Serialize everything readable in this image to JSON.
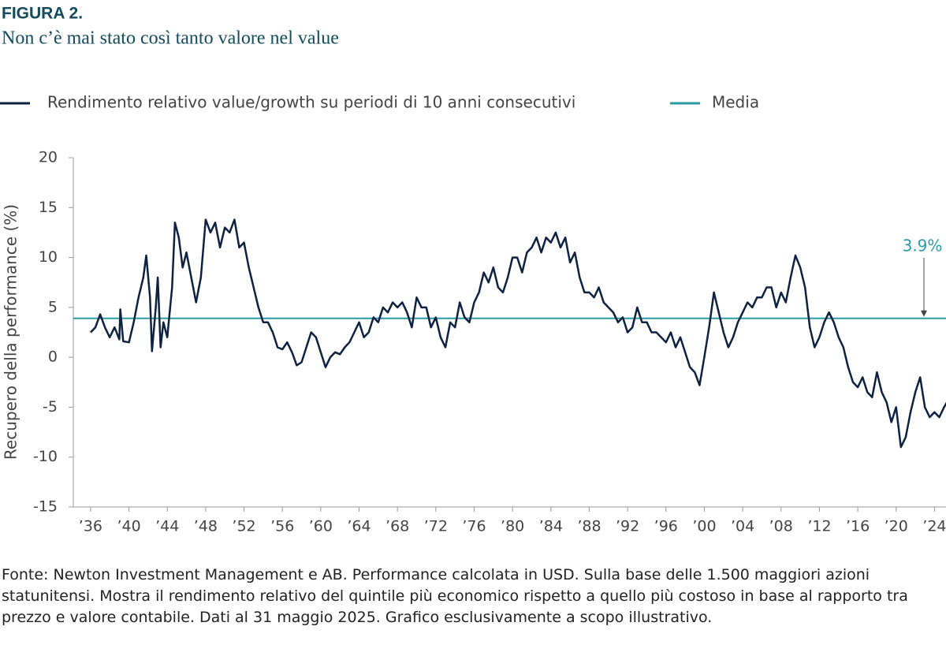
{
  "chart_data": {
    "type": "line",
    "title": "FIGURA 2.",
    "subtitle": "Non c’è mai stato così tanto valore nel value",
    "ylabel": "Recupero della performance (%)",
    "footnote": "Fonte: Newton Investment Management e AB. Performance calcolata in USD. Sulla base delle 1.500 maggiori azioni statunitensi. Mostra il rendimento relativo del quintile più economico rispetto a quello più costoso in base al rapporto tra prezzo e valore contabile. Dati al 31 maggio 2025. Grafico esclusivamente a scopo illustrativo.",
    "xlim": [
      1934.2,
      2025.2
    ],
    "ylim": [
      -15,
      20
    ],
    "yticks": [
      -15,
      -10,
      -5,
      0,
      5,
      10,
      15,
      20
    ],
    "xticks": [
      {
        "value": 1936,
        "label": "’36"
      },
      {
        "value": 1940,
        "label": "’40"
      },
      {
        "value": 1944,
        "label": "’44"
      },
      {
        "value": 1948,
        "label": "’48"
      },
      {
        "value": 1952,
        "label": "’52"
      },
      {
        "value": 1956,
        "label": "’56"
      },
      {
        "value": 1960,
        "label": "’60"
      },
      {
        "value": 1964,
        "label": "’64"
      },
      {
        "value": 1968,
        "label": "’68"
      },
      {
        "value": 1972,
        "label": "’72"
      },
      {
        "value": 1976,
        "label": "’76"
      },
      {
        "value": 1980,
        "label": "’80"
      },
      {
        "value": 1984,
        "label": "’84"
      },
      {
        "value": 1988,
        "label": "’88"
      },
      {
        "value": 1992,
        "label": "’92"
      },
      {
        "value": 1996,
        "label": "’96"
      },
      {
        "value": 2000,
        "label": "’00"
      },
      {
        "value": 2004,
        "label": "’04"
      },
      {
        "value": 2008,
        "label": "’08"
      },
      {
        "value": 2012,
        "label": "’12"
      },
      {
        "value": 2016,
        "label": "’16"
      },
      {
        "value": 2020,
        "label": "’20"
      },
      {
        "value": 2024,
        "label": "’24"
      }
    ],
    "x": [
      1936.0,
      1936.5,
      1937.0,
      1937.5,
      1938.0,
      1938.5,
      1939.0,
      1939.1,
      1939.4,
      1940.0,
      1940.5,
      1941.0,
      1941.5,
      1941.8,
      1942.2,
      1942.4,
      1942.8,
      1943.0,
      1943.3,
      1943.6,
      1944.0,
      1944.5,
      1944.8,
      1945.2,
      1945.6,
      1946.0,
      1946.5,
      1947.0,
      1947.5,
      1948.0,
      1948.5,
      1949.0,
      1949.5,
      1950.0,
      1950.5,
      1951.0,
      1951.5,
      1952.0,
      1952.5,
      1953.0,
      1953.5,
      1954.0,
      1954.5,
      1955.0,
      1955.5,
      1956.0,
      1956.5,
      1957.0,
      1957.5,
      1958.0,
      1958.5,
      1959.0,
      1959.5,
      1960.0,
      1960.5,
      1961.0,
      1961.5,
      1962.0,
      1962.5,
      1963.0,
      1963.5,
      1964.0,
      1964.5,
      1965.0,
      1965.5,
      1966.0,
      1966.5,
      1967.0,
      1967.5,
      1968.0,
      1968.5,
      1969.0,
      1969.5,
      1970.0,
      1970.5,
      1971.0,
      1971.5,
      1972.0,
      1972.5,
      1973.0,
      1973.5,
      1974.0,
      1974.5,
      1975.0,
      1975.5,
      1976.0,
      1976.5,
      1977.0,
      1977.5,
      1978.0,
      1978.5,
      1979.0,
      1979.5,
      1980.0,
      1980.5,
      1981.0,
      1981.5,
      1982.0,
      1982.5,
      1983.0,
      1983.5,
      1984.0,
      1984.5,
      1985.0,
      1985.5,
      1986.0,
      1986.5,
      1987.0,
      1987.5,
      1988.0,
      1988.5,
      1989.0,
      1989.5,
      1990.0,
      1990.5,
      1991.0,
      1991.5,
      1992.0,
      1992.5,
      1993.0,
      1993.5,
      1994.0,
      1994.5,
      1995.0,
      1995.5,
      1996.0,
      1996.5,
      1997.0,
      1997.5,
      1998.0,
      1998.5,
      1999.0,
      1999.5,
      2000.0,
      2000.5,
      2001.0,
      2001.5,
      2002.0,
      2002.5,
      2003.0,
      2003.5,
      2004.0,
      2004.5,
      2005.0,
      2005.5,
      2006.0,
      2006.5,
      2007.0,
      2007.5,
      2008.0,
      2008.5,
      2009.0,
      2009.5,
      2010.0,
      2010.5,
      2011.0,
      2011.5,
      2012.0,
      2012.5,
      2013.0,
      2013.5,
      2014.0,
      2014.5,
      2015.0,
      2015.5,
      2016.0,
      2016.5,
      2017.0,
      2017.5,
      2018.0,
      2018.5,
      2019.0,
      2019.5,
      2020.0,
      2020.5,
      2021.0,
      2021.5,
      2022.0,
      2022.5,
      2023.0,
      2023.5,
      2024.0,
      2024.5,
      2025.0,
      2025.3
    ],
    "series": [
      {
        "name": "Rendimento relativo value/growth su periodi di 10 anni consecutivi",
        "color": "#0d2240",
        "values": [
          2.5,
          3.0,
          4.3,
          3.0,
          2.0,
          3.0,
          1.8,
          4.8,
          1.6,
          1.5,
          3.5,
          6.0,
          8.0,
          10.2,
          6.0,
          0.6,
          5.0,
          8.0,
          1.0,
          3.5,
          2.0,
          7.0,
          13.5,
          12.0,
          9.0,
          10.5,
          8.0,
          5.5,
          8.0,
          13.8,
          12.5,
          13.5,
          11,
          13,
          12.5,
          13.8,
          11,
          11.5,
          9,
          7,
          5,
          3.5,
          3.5,
          2.5,
          1,
          0.8,
          1.5,
          0.5,
          -0.8,
          -0.5,
          1,
          2.5,
          2,
          0.5,
          -1,
          0,
          0.5,
          0.3,
          1,
          1.5,
          2.5,
          3.5,
          2,
          2.5,
          4,
          3.5,
          5,
          4.5,
          5.5,
          5,
          5.5,
          4.5,
          3,
          6,
          5,
          5,
          3,
          4,
          2,
          1,
          3.5,
          3,
          5.5,
          4,
          3.5,
          5.5,
          6.5,
          8.5,
          7.5,
          9,
          7,
          6.5,
          8,
          10,
          10,
          8.5,
          10.5,
          11,
          12,
          10.5,
          12,
          11.5,
          12.5,
          11,
          12,
          9.5,
          10.5,
          8,
          6.5,
          6.5,
          6,
          7,
          5.5,
          5,
          4.5,
          3.5,
          4,
          2.5,
          3,
          5,
          3.5,
          3.5,
          2.5,
          2.5,
          2,
          1.5,
          2.5,
          1,
          2,
          0.5,
          -1,
          -1.5,
          -2.8,
          0,
          3,
          6.5,
          4.5,
          2.5,
          1,
          2,
          3.5,
          4.5,
          5.5,
          5,
          6,
          6,
          7,
          7,
          5,
          6.5,
          5.5,
          8,
          10.2,
          9,
          7,
          3,
          1,
          2,
          3.5,
          4.5,
          3.5,
          2,
          1,
          -1,
          -2.5,
          -3,
          -2,
          -3.5,
          -4,
          -1.5,
          -3.5,
          -4.5,
          -6.5,
          -5,
          -9,
          -8,
          -5.5,
          -3.5,
          -2,
          -5,
          -6,
          -5.5,
          -6,
          -5,
          -4.5
        ]
      }
    ],
    "mean": {
      "name": "Media",
      "value": 3.9,
      "label": "3.9%",
      "color": "#2b9aa6"
    }
  }
}
